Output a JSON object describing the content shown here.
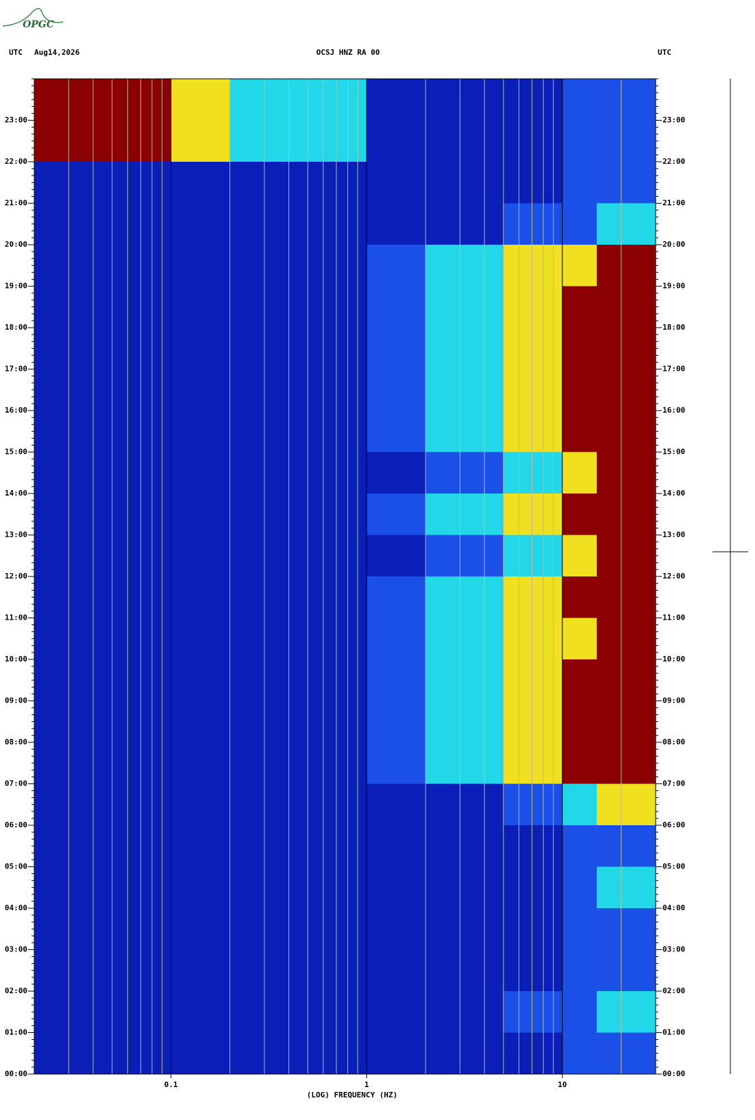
{
  "chart_data": {
    "type": "spectrogram",
    "logo": "OPGC",
    "title": "OCSJ HNZ RA 00",
    "date": "Aug14,2026",
    "time_zone": "UTC",
    "xlabel": "(LOG) FREQUENCY (HZ)",
    "xscale": "log",
    "xlim": [
      0.02,
      30
    ],
    "xticks": [
      {
        "value": 0.1,
        "label": "0.1"
      },
      1,
      10
    ],
    "ylim": [
      0,
      24
    ],
    "yticks": [
      {
        "value": 0,
        "label": "00:00"
      },
      {
        "value": 1,
        "label": "01:00"
      },
      {
        "value": 2,
        "label": "02:00"
      },
      {
        "value": 3,
        "label": "03:00"
      },
      {
        "value": 4,
        "label": "04:00"
      },
      {
        "value": 5,
        "label": "05:00"
      },
      {
        "value": 6,
        "label": "06:00"
      },
      {
        "value": 7,
        "label": "07:00"
      },
      {
        "value": 8,
        "label": "08:00"
      },
      {
        "value": 9,
        "label": "09:00"
      },
      {
        "value": 10,
        "label": "10:00"
      },
      {
        "value": 11,
        "label": "11:00"
      },
      {
        "value": 12,
        "label": "12:00"
      },
      {
        "value": 13,
        "label": "13:00"
      },
      {
        "value": 14,
        "label": "14:00"
      },
      {
        "value": 15,
        "label": "15:00"
      },
      {
        "value": 16,
        "label": "16:00"
      },
      {
        "value": 17,
        "label": "17:00"
      },
      {
        "value": 18,
        "label": "18:00"
      },
      {
        "value": 19,
        "label": "19:00"
      },
      {
        "value": 20,
        "label": "20:00"
      },
      {
        "value": 21,
        "label": "21:00"
      },
      {
        "value": 22,
        "label": "22:00"
      },
      {
        "value": 23,
        "label": "23:00"
      }
    ],
    "grid": true,
    "freq_edges": [
      0.02,
      0.05,
      0.1,
      0.2,
      1,
      2,
      5,
      10,
      15,
      30
    ],
    "colors": [
      "#0a1fb8",
      "#1a4fe8",
      "#22d8e8",
      "#f0e020",
      "#8b0000"
    ],
    "z": [
      [
        0,
        0,
        0,
        0,
        0,
        0,
        0,
        1,
        1
      ],
      [
        0,
        0,
        0,
        0,
        0,
        0,
        1,
        1,
        2
      ],
      [
        0,
        0,
        0,
        0,
        0,
        0,
        0,
        1,
        1
      ],
      [
        0,
        0,
        0,
        0,
        0,
        0,
        0,
        1,
        1
      ],
      [
        0,
        0,
        0,
        0,
        0,
        0,
        0,
        1,
        2
      ],
      [
        0,
        0,
        0,
        0,
        0,
        0,
        0,
        1,
        1
      ],
      [
        0,
        0,
        0,
        0,
        0,
        0,
        1,
        2,
        3
      ],
      [
        0,
        0,
        0,
        0,
        1,
        2,
        3,
        4,
        4
      ],
      [
        0,
        0,
        0,
        0,
        1,
        2,
        3,
        4,
        4
      ],
      [
        0,
        0,
        0,
        0,
        1,
        2,
        3,
        4,
        4
      ],
      [
        0,
        0,
        0,
        0,
        1,
        2,
        3,
        3,
        4
      ],
      [
        0,
        0,
        0,
        0,
        1,
        2,
        3,
        4,
        4
      ],
      [
        0,
        0,
        0,
        0,
        0,
        1,
        2,
        3,
        4
      ],
      [
        0,
        0,
        0,
        0,
        1,
        2,
        3,
        4,
        4
      ],
      [
        0,
        0,
        0,
        0,
        0,
        1,
        2,
        3,
        4
      ],
      [
        0,
        0,
        0,
        0,
        1,
        2,
        3,
        4,
        4
      ],
      [
        0,
        0,
        0,
        0,
        1,
        2,
        3,
        4,
        4
      ],
      [
        0,
        0,
        0,
        0,
        1,
        2,
        3,
        4,
        4
      ],
      [
        0,
        0,
        0,
        0,
        1,
        2,
        3,
        4,
        4
      ],
      [
        0,
        0,
        0,
        0,
        1,
        2,
        3,
        3,
        4
      ],
      [
        0,
        0,
        0,
        0,
        0,
        0,
        1,
        1,
        2
      ],
      [
        0,
        0,
        0,
        0,
        0,
        0,
        0,
        1,
        1
      ],
      [
        4,
        4,
        3,
        2,
        0,
        0,
        0,
        1,
        1
      ],
      [
        4,
        4,
        3,
        2,
        0,
        0,
        0,
        1,
        1
      ]
    ]
  }
}
